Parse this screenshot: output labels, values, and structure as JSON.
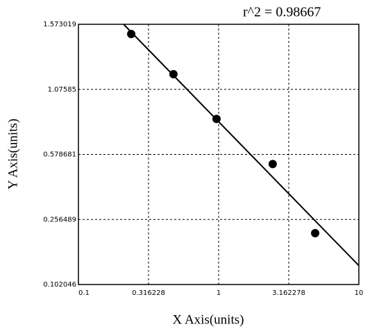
{
  "chart_data": {
    "type": "scatter",
    "annotation": "r^2  = 0.98667",
    "x_label": "X Axis(units)",
    "y_label": "Y Axis(units)",
    "x": [
      0.238,
      0.476,
      0.966,
      2.43,
      4.88
    ],
    "values": [
      1.499,
      1.192,
      0.85,
      0.531,
      0.224
    ],
    "color": "#000000",
    "fit": {
      "x": [
        0.21,
        10
      ],
      "values": [
        1.573019,
        0.147
      ]
    },
    "xlim": [
      0.1,
      10
    ],
    "xticks": [
      0.1,
      0.316228,
      1,
      3.162278,
      10
    ],
    "xlog": true,
    "ylim": [
      0.102046,
      1.573019
    ],
    "yticks": [
      0.102046,
      0.256489,
      0.578681,
      1.07585,
      1.573019
    ],
    "grid": true
  }
}
